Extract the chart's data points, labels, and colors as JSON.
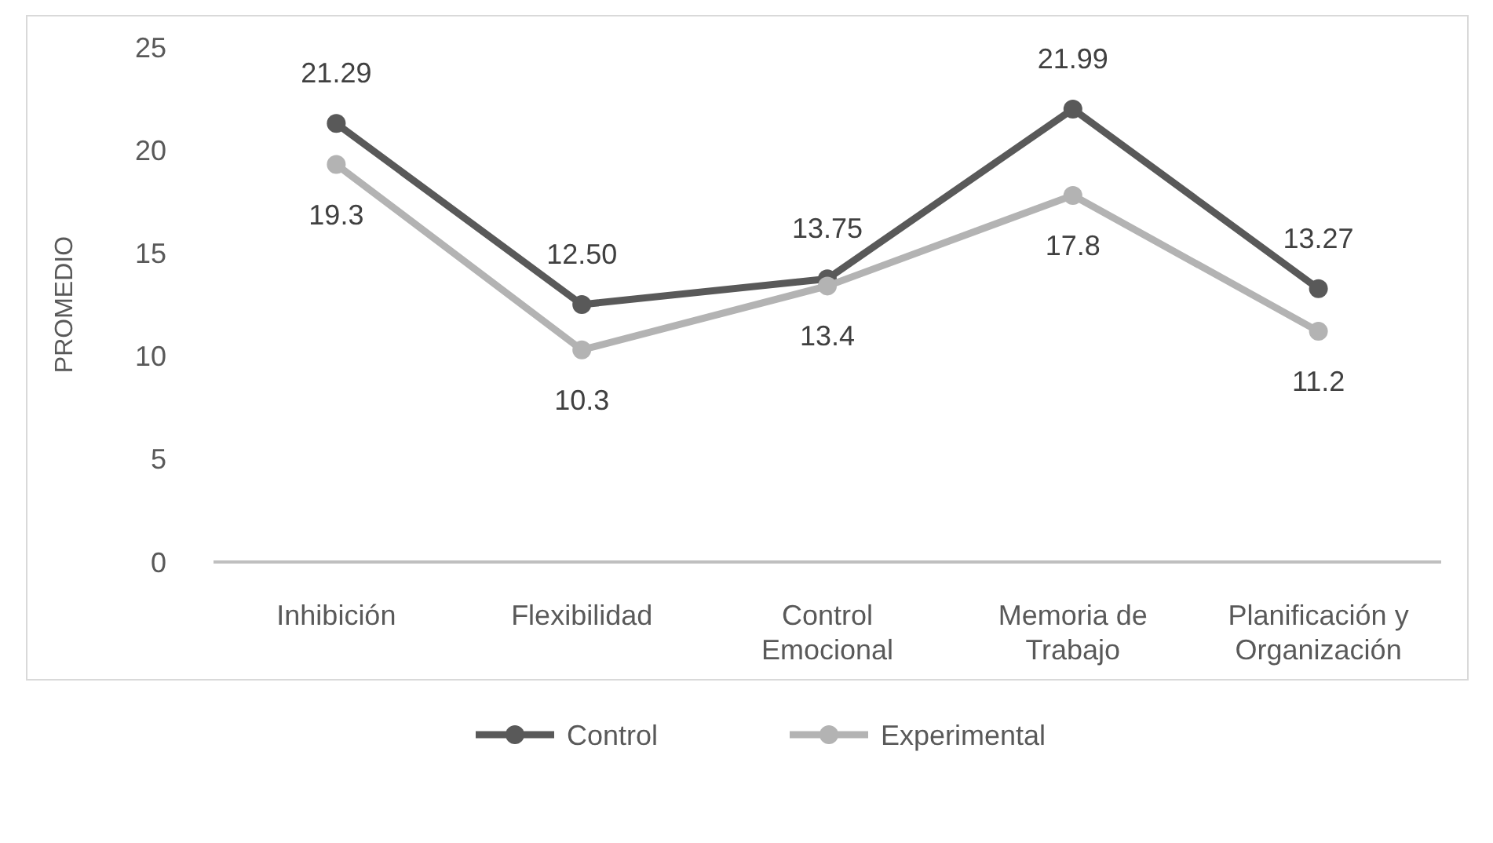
{
  "chart_data": {
    "type": "line",
    "ylabel": "PROMEDIO",
    "categories": [
      "Inhibición",
      "Flexibilidad",
      "Control Emocional",
      "Memoria de Trabajo",
      "Planificación y Organización"
    ],
    "series": [
      {
        "name": "Control",
        "color": "#595959",
        "values": [
          21.29,
          12.5,
          13.75,
          21.99,
          13.27
        ],
        "value_labels": [
          "21.29",
          "12.50",
          "13.75",
          "21.99",
          "13.27"
        ]
      },
      {
        "name": "Experimental",
        "color": "#b3b3b3",
        "values": [
          19.3,
          10.3,
          13.4,
          17.8,
          11.2
        ],
        "value_labels": [
          "19.3",
          "10.3",
          "13.4",
          "17.8",
          "11.2"
        ]
      }
    ],
    "ylim": [
      0,
      25
    ],
    "yticks": [
      0,
      5,
      10,
      15,
      20,
      25
    ],
    "grid": false,
    "legend": "bottom",
    "marker": "circle",
    "line_style": "solid"
  }
}
